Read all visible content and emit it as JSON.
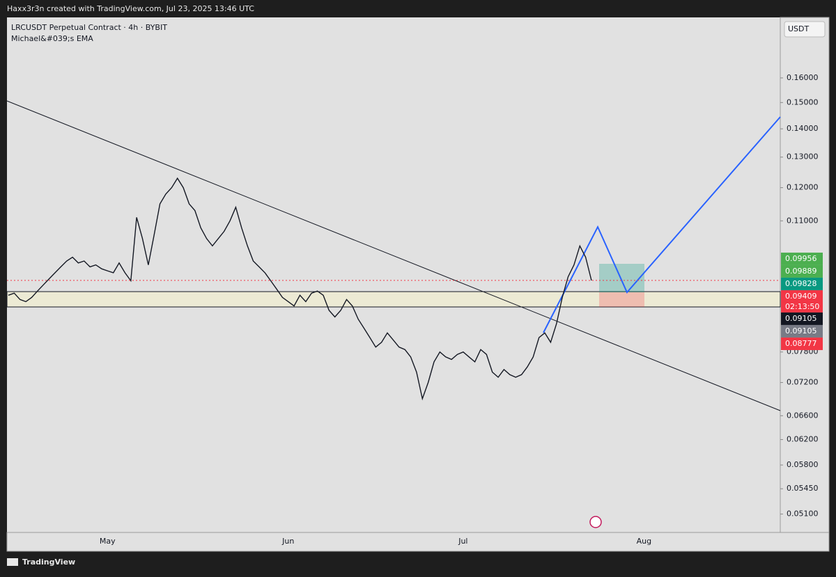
{
  "header": {
    "text": "Haxx3r3n created with TradingView.com, Jul 23, 2025 13:46 UTC"
  },
  "footer": {
    "brand": "TradingView"
  },
  "chart_data": {
    "type": "line",
    "title": "LRCUSDT Perpetual Contract · 4h · BYBIT",
    "indicator": "Michael&#039;s EMA",
    "currency": "USDT",
    "color": "#131722",
    "log_scale": true,
    "grid": false,
    "ylim": [
      0.0486,
      0.1875
    ],
    "yticks": [
      {
        "value": 0.16,
        "label": "0.16000"
      },
      {
        "value": 0.15,
        "label": "0.15000"
      },
      {
        "value": 0.14,
        "label": "0.14000"
      },
      {
        "value": 0.13,
        "label": "0.13000"
      },
      {
        "value": 0.12,
        "label": "0.12000"
      },
      {
        "value": 0.11,
        "label": "0.11000"
      },
      {
        "value": 0.078,
        "label": "0.07800"
      },
      {
        "value": 0.072,
        "label": "0.07200"
      },
      {
        "value": 0.066,
        "label": "0.06600"
      },
      {
        "value": 0.062,
        "label": "0.06200"
      },
      {
        "value": 0.058,
        "label": "0.05800"
      },
      {
        "value": 0.0545,
        "label": "0.05450"
      },
      {
        "value": 0.051,
        "label": "0.05100"
      }
    ],
    "categories": [
      null,
      null,
      null,
      null,
      null,
      null,
      null,
      null,
      null,
      null,
      null,
      null,
      null,
      null,
      null,
      null,
      null,
      "May",
      null,
      null,
      null,
      null,
      null,
      null,
      null,
      null,
      null,
      null,
      null,
      null,
      null,
      null,
      null,
      null,
      null,
      null,
      null,
      null,
      null,
      null,
      null,
      null,
      null,
      null,
      null,
      null,
      null,
      null,
      "Jun",
      null,
      null,
      null,
      null,
      null,
      null,
      null,
      null,
      null,
      null,
      null,
      null,
      null,
      null,
      null,
      null,
      null,
      null,
      null,
      null,
      null,
      null,
      null,
      null,
      null,
      null,
      null,
      null,
      null,
      "Jul",
      null,
      null,
      null,
      null,
      null,
      null,
      null,
      null,
      null,
      null,
      null,
      null,
      null,
      null,
      null,
      null,
      null,
      null,
      null,
      null,
      null,
      null,
      null,
      null,
      null,
      null,
      null,
      null,
      null,
      null,
      "Aug",
      null,
      null,
      null,
      null,
      null,
      null,
      null,
      null,
      null,
      null,
      null,
      null,
      null,
      null,
      null,
      null,
      null,
      null,
      null,
      null,
      null,
      null,
      null
    ],
    "values": [
      0.0905,
      0.091,
      0.0895,
      0.089,
      0.09,
      0.0915,
      0.093,
      0.0945,
      0.096,
      0.0975,
      0.099,
      0.1,
      0.0985,
      0.099,
      0.0975,
      0.098,
      0.097,
      0.0965,
      0.096,
      0.0985,
      0.096,
      0.094,
      0.111,
      0.105,
      0.098,
      0.106,
      0.115,
      0.118,
      0.12,
      0.123,
      0.12,
      0.115,
      0.113,
      0.108,
      0.105,
      0.103,
      0.105,
      0.107,
      0.11,
      0.114,
      0.108,
      0.103,
      0.099,
      0.0975,
      0.096,
      0.094,
      0.092,
      0.09,
      0.089,
      0.088,
      0.0905,
      0.089,
      0.091,
      0.0915,
      0.0905,
      0.087,
      0.0855,
      0.087,
      0.0895,
      0.088,
      0.085,
      0.083,
      0.081,
      0.079,
      0.08,
      0.082,
      0.0805,
      0.079,
      0.0785,
      0.077,
      0.074,
      0.069,
      0.072,
      0.076,
      0.078,
      0.077,
      0.0765,
      0.0775,
      0.078,
      0.077,
      0.076,
      0.0785,
      0.0775,
      0.074,
      0.073,
      0.0745,
      0.0735,
      0.073,
      0.0735,
      0.075,
      0.077,
      0.081,
      0.082,
      0.08,
      0.084,
      0.09,
      0.095,
      0.098,
      0.103,
      0.1,
      0.0941,
      null,
      null,
      null,
      null,
      null,
      null,
      null,
      null,
      null,
      null,
      null,
      null,
      null,
      null,
      null,
      null,
      null,
      null,
      null,
      null,
      null,
      null,
      null,
      null,
      null,
      null,
      null,
      null,
      null,
      null,
      null,
      null
    ],
    "price_labels": [
      {
        "value": 0.09956,
        "label": "0.09956",
        "color": "#4caf50"
      },
      {
        "value": 0.09889,
        "label": "0.09889",
        "color": "#4caf50"
      },
      {
        "value": 0.09828,
        "label": "0.09828",
        "color": "#089981"
      },
      {
        "value": 0.09409,
        "label": "0.09409",
        "countdown": "02:13:50",
        "color": "#f23645"
      },
      {
        "value": 0.09105,
        "label": "0.09105",
        "color": "#131722"
      },
      {
        "value": 0.09105,
        "label": "0.09105",
        "color": "#787b86"
      },
      {
        "value": 0.08777,
        "label": "0.08777",
        "color": "#f23645"
      }
    ]
  }
}
